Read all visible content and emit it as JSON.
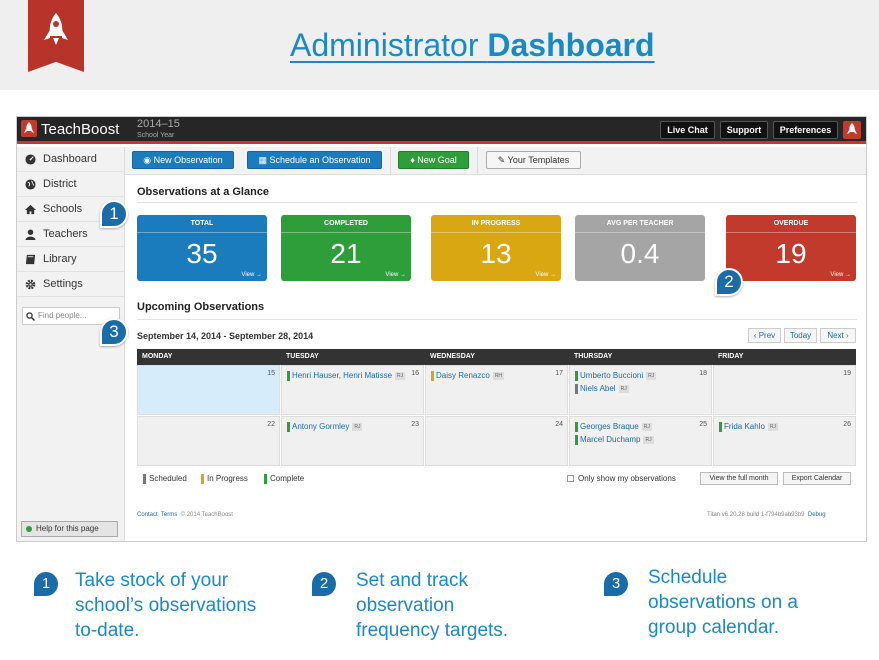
{
  "banner": {
    "title_plain": "Administrator",
    "title_bold": "Dashboard"
  },
  "topbar": {
    "brand": "TeachBoost",
    "year": "2014–15",
    "year_label": "School Year",
    "buttons": [
      "Live Chat",
      "Support",
      "Preferences"
    ]
  },
  "sidebar": {
    "items": [
      {
        "label": "Dashboard",
        "icon": "dashboard-icon"
      },
      {
        "label": "District",
        "icon": "globe-icon"
      },
      {
        "label": "Schools",
        "icon": "home-icon"
      },
      {
        "label": "Teachers",
        "icon": "user-icon"
      },
      {
        "label": "Library",
        "icon": "book-icon"
      },
      {
        "label": "Settings",
        "icon": "gear-icon"
      }
    ],
    "search_placeholder": "Find people...",
    "help": "Help for this page"
  },
  "toolbar": {
    "new_observation": "New Observation",
    "schedule": "Schedule an Observation",
    "new_goal": "New Goal",
    "templates": "Your Templates"
  },
  "glance": {
    "title": "Observations at a Glance",
    "view": "View →",
    "cards": [
      {
        "label": "TOTAL",
        "value": "35",
        "color": "#1a7bbd"
      },
      {
        "label": "COMPLETED",
        "value": "21",
        "color": "#2e9e3a"
      },
      {
        "label": "IN PROGRESS",
        "value": "13",
        "color": "#d9a711"
      },
      {
        "label": "AVG PER TEACHER",
        "value": "0.4",
        "color": "#a5a5a5"
      },
      {
        "label": "OVERDUE",
        "value": "19",
        "color": "#c23a2c"
      }
    ]
  },
  "upcoming": {
    "title": "Upcoming Observations",
    "range": "September 14, 2014 - September 28, 2014",
    "prev": "‹ Prev",
    "today": "Today",
    "next": "Next ›"
  },
  "calendar": {
    "days": [
      "MONDAY",
      "TUESDAY",
      "WEDNESDAY",
      "THURSDAY",
      "FRIDAY"
    ],
    "weeks": [
      [
        {
          "date": "15",
          "today": true,
          "obs": []
        },
        {
          "date": "16",
          "obs": [
            {
              "name": "Henri Hauser, Henri Matisse",
              "status": "complete",
              "tag": "RJ"
            }
          ]
        },
        {
          "date": "17",
          "obs": [
            {
              "name": "Daisy Renazco",
              "status": "progress",
              "tag": "RH"
            }
          ]
        },
        {
          "date": "18",
          "obs": [
            {
              "name": "Umberto Buccioni",
              "status": "complete",
              "tag": "RJ"
            },
            {
              "name": "Niels Abel",
              "status": "scheduled",
              "tag": "RJ"
            }
          ]
        },
        {
          "date": "19",
          "obs": []
        }
      ],
      [
        {
          "date": "22",
          "obs": []
        },
        {
          "date": "23",
          "obs": [
            {
              "name": "Antony Gormley",
              "status": "complete",
              "tag": "RJ"
            }
          ]
        },
        {
          "date": "24",
          "obs": []
        },
        {
          "date": "25",
          "obs": [
            {
              "name": "Georges Braque",
              "status": "complete",
              "tag": "RJ"
            },
            {
              "name": "Marcel Duchamp",
              "status": "complete",
              "tag": "RJ"
            }
          ]
        },
        {
          "date": "26",
          "obs": [
            {
              "name": "Frida Kahlo",
              "status": "complete",
              "tag": "RJ"
            }
          ]
        }
      ]
    ]
  },
  "legend": {
    "scheduled": "Scheduled",
    "progress": "In Progress",
    "complete": "Complete",
    "only_mine": "Only show my observations",
    "full_month": "View the full month",
    "export": "Export Calendar"
  },
  "status_colors": {
    "scheduled": "#777777",
    "progress": "#d9a711",
    "complete": "#2e9e3a"
  },
  "footer": {
    "contact": "Contact",
    "terms": "Terms",
    "copyright": "© 2014 TeachBoost",
    "version": "Titan v6.20.28 build 1-f794b9ab93b9",
    "debug": "Debug"
  },
  "callouts": [
    {
      "num": "1",
      "text": "Take stock of your school’s observations to-date."
    },
    {
      "num": "2",
      "text": "Set and track observation frequency targets."
    },
    {
      "num": "3",
      "text": "Schedule observations on a group calendar."
    }
  ]
}
